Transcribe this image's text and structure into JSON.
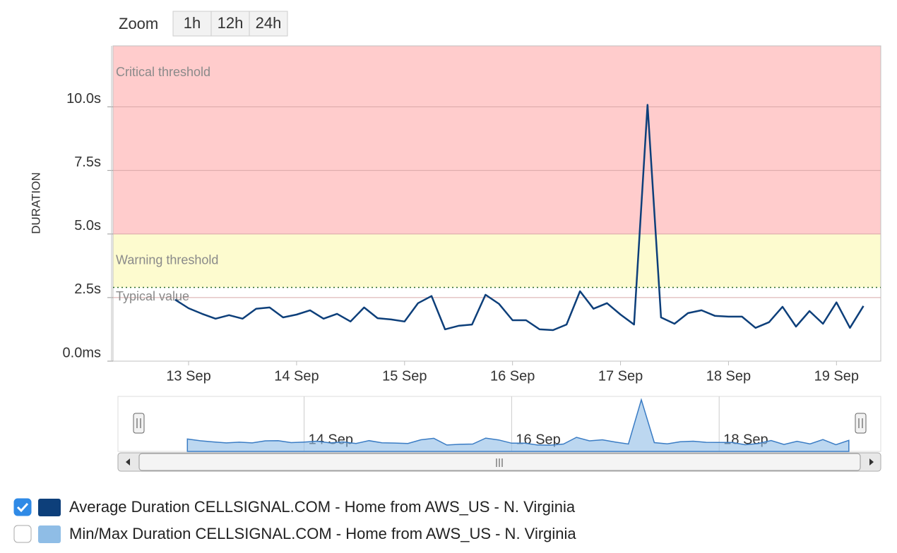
{
  "zoom": {
    "label": "Zoom",
    "buttons": [
      "1h",
      "12h",
      "24h"
    ]
  },
  "chart_data": {
    "type": "line",
    "y_label": "DURATION",
    "x": [
      12.875,
      13,
      13.125,
      13.25,
      13.375,
      13.5,
      13.625,
      13.75,
      13.875,
      14,
      14.125,
      14.25,
      14.375,
      14.5,
      14.625,
      14.75,
      14.875,
      15,
      15.125,
      15.25,
      15.375,
      15.5,
      15.625,
      15.75,
      15.875,
      16,
      16.125,
      16.25,
      16.375,
      16.5,
      16.625,
      16.75,
      16.875,
      17,
      17.125,
      17.25,
      17.375,
      17.5,
      17.625,
      17.75,
      17.875,
      18,
      18.125,
      18.25,
      18.375,
      18.5,
      18.625,
      18.75,
      18.875,
      19,
      19.125,
      19.25
    ],
    "series": [
      {
        "name": "Average Duration CELLSIGNAL.COM - Home from AWS_US - N. Virginia",
        "color": "#0d3f7a",
        "checked": true,
        "values": [
          2.42,
          2.08,
          1.86,
          1.67,
          1.81,
          1.67,
          2.06,
          2.11,
          1.72,
          1.83,
          2.0,
          1.67,
          1.86,
          1.56,
          2.11,
          1.69,
          1.64,
          1.56,
          2.28,
          2.56,
          1.25,
          1.39,
          1.44,
          2.61,
          2.25,
          1.61,
          1.61,
          1.25,
          1.22,
          1.44,
          2.75,
          2.06,
          2.28,
          1.83,
          1.44,
          10.08,
          1.72,
          1.47,
          1.89,
          2.0,
          1.78,
          1.75,
          1.75,
          1.31,
          1.53,
          2.14,
          1.36,
          1.97,
          1.47,
          2.31,
          1.31,
          2.17
        ]
      },
      {
        "name": "Min/Max Duration CELLSIGNAL.COM - Home from AWS_US - N. Virginia",
        "color": "#8fbde6",
        "checked": false
      }
    ],
    "xlim": [
      12.3,
      19.41
    ],
    "xticks": [
      {
        "value": 13,
        "label": "13 Sep"
      },
      {
        "value": 14,
        "label": "14 Sep"
      },
      {
        "value": 15,
        "label": "15 Sep"
      },
      {
        "value": 16,
        "label": "16 Sep"
      },
      {
        "value": 17,
        "label": "17 Sep"
      },
      {
        "value": 18,
        "label": "18 Sep"
      },
      {
        "value": 19,
        "label": "19 Sep"
      }
    ],
    "ylim": [
      0,
      12.4
    ],
    "yticks": [
      {
        "value": 0,
        "label": "0.0ms"
      },
      {
        "value": 2.5,
        "label": "2.5s"
      },
      {
        "value": 5,
        "label": "5.0s"
      },
      {
        "value": 7.5,
        "label": "7.5s"
      },
      {
        "value": 10,
        "label": "10.0s"
      }
    ],
    "grid": true,
    "plot_bands": [
      {
        "label": "Critical threshold",
        "from": 5,
        "color": "#ffcccc"
      },
      {
        "label": "Warning threshold",
        "from": 2.9,
        "to": 5,
        "color": "#fdfbcf"
      }
    ],
    "plot_lines": [
      {
        "label": "Typical value",
        "value": 2.9,
        "color": "#2a6a2a"
      }
    ]
  },
  "navigator": {
    "xlim": [
      12.41,
      19.36
    ],
    "xticks": [
      {
        "value": 14,
        "label": "14 Sep"
      },
      {
        "value": 16,
        "label": "16 Sep"
      },
      {
        "value": 18,
        "label": "18 Sep"
      }
    ]
  }
}
